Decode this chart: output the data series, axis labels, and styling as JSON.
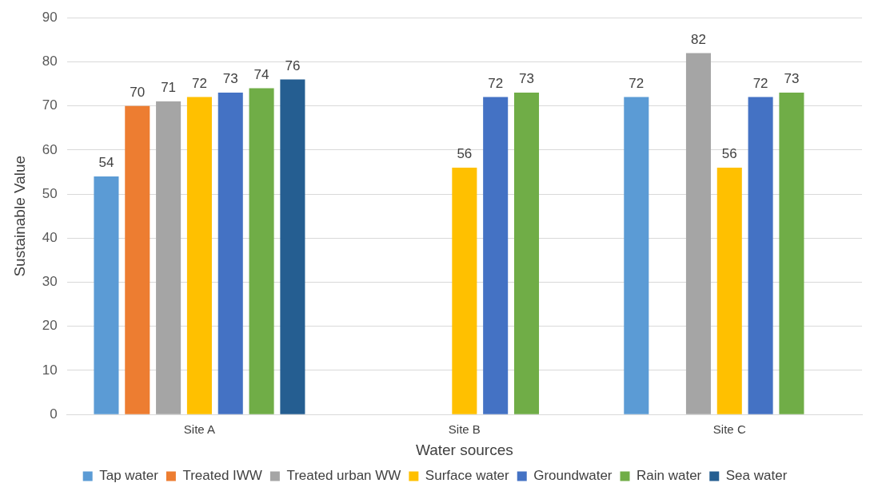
{
  "chart_data": {
    "type": "bar",
    "xlabel": "Water sources",
    "ylabel": "Sustainable Value",
    "categories": [
      "Site A",
      "Site B",
      "Site C"
    ],
    "series": [
      {
        "name": "Tap water",
        "color": "#5b9bd5",
        "values": [
          54,
          null,
          72
        ]
      },
      {
        "name": "Treated IWW",
        "color": "#ed7d31",
        "values": [
          70,
          null,
          null
        ]
      },
      {
        "name": "Treated urban WW",
        "color": "#a5a5a5",
        "values": [
          71,
          null,
          82
        ]
      },
      {
        "name": "Surface water",
        "color": "#ffc000",
        "values": [
          72,
          56,
          56
        ]
      },
      {
        "name": "Groundwater",
        "color": "#4472c4",
        "values": [
          73,
          72,
          72
        ]
      },
      {
        "name": "Rain water",
        "color": "#70ad47",
        "values": [
          74,
          73,
          73
        ]
      },
      {
        "name": "Sea water",
        "color": "#255e91",
        "values": [
          76,
          null,
          null
        ]
      }
    ],
    "ylim": [
      0,
      90
    ],
    "yticks": [
      0,
      10,
      20,
      30,
      40,
      50,
      60,
      70,
      80,
      90
    ],
    "grid": "y",
    "legend": "bottom",
    "data_labels": true
  }
}
